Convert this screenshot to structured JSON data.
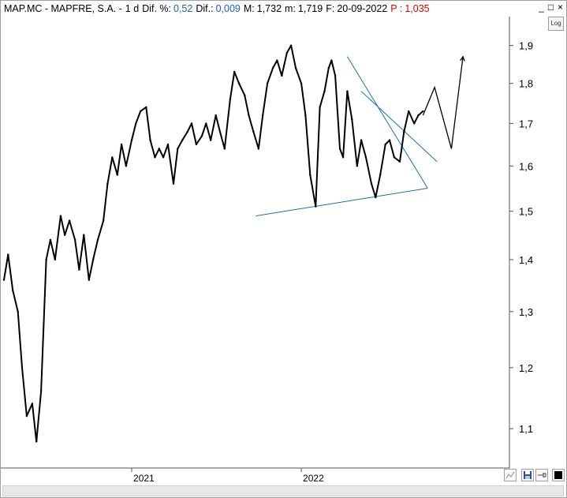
{
  "header": {
    "ticker": "MAP.MC - MAPFRE, S.A. -",
    "period": "1 d",
    "dif_pct_label": "Dif. %:",
    "dif_pct_value": "0,52",
    "dif_label": "Dif.:",
    "dif_value": "0,009",
    "max_label": "M:",
    "max_value": "1,732",
    "min_label": "m:",
    "min_value": "1,719",
    "date_label": "F:",
    "date_value": "20-09-2022",
    "p_label": "P :",
    "p_value": "1,035"
  },
  "controls": {
    "minimize": "_",
    "maximize": "□",
    "close": "×",
    "log": "Log"
  },
  "colors": {
    "price": "#000000",
    "trendline": "#1e6fb0",
    "blue_text": "#1f5fbf",
    "red_text": "#e00000"
  },
  "chart_data": {
    "type": "line",
    "yscale": "log",
    "ylim": [
      1.04,
      1.98
    ],
    "y_ticks": [
      1.1,
      1.2,
      1.3,
      1.4,
      1.5,
      1.6,
      1.7,
      1.8,
      1.9
    ],
    "y_tick_labels": [
      "1,1",
      "1,2",
      "1,3",
      "1,4",
      "1,5",
      "1,6",
      "1,7",
      "1,8",
      "1,9"
    ],
    "x_tick_labels": [
      "2021",
      "2022"
    ],
    "grid": false,
    "x_range": [
      "2020-04-01",
      "2023-03-25"
    ],
    "x_ticks": [
      "2021-01-01",
      "2022-01-01"
    ],
    "series": [
      {
        "x": [
          "2020-04-01",
          "2020-04-10",
          "2020-04-20",
          "2020-05-01",
          "2020-05-10",
          "2020-05-20",
          "2020-06-01",
          "2020-06-10",
          "2020-06-20",
          "2020-07-01",
          "2020-07-10",
          "2020-07-20",
          "2020-08-01",
          "2020-08-10",
          "2020-08-20",
          "2020-09-01",
          "2020-09-10",
          "2020-09-20",
          "2020-10-01",
          "2020-10-10",
          "2020-10-20",
          "2020-11-01",
          "2020-11-10",
          "2020-11-20",
          "2020-12-01",
          "2020-12-10",
          "2020-12-20",
          "2021-01-01",
          "2021-01-10",
          "2021-01-20",
          "2021-02-01",
          "2021-02-10",
          "2021-02-20",
          "2021-03-01",
          "2021-03-10",
          "2021-03-20",
          "2021-04-01",
          "2021-04-10",
          "2021-04-20",
          "2021-05-01",
          "2021-05-10",
          "2021-05-20",
          "2021-06-01",
          "2021-06-10",
          "2021-06-20",
          "2021-07-01",
          "2021-07-10",
          "2021-07-20",
          "2021-08-01",
          "2021-08-10",
          "2021-08-20",
          "2021-09-01",
          "2021-09-10",
          "2021-09-20",
          "2021-10-01",
          "2021-10-10",
          "2021-10-20",
          "2021-11-01",
          "2021-11-10",
          "2021-11-20",
          "2021-12-01",
          "2021-12-10",
          "2021-12-20",
          "2022-01-01",
          "2022-01-10",
          "2022-01-20",
          "2022-02-01",
          "2022-02-10",
          "2022-02-20",
          "2022-03-01",
          "2022-03-07",
          "2022-03-15",
          "2022-03-25",
          "2022-04-01",
          "2022-04-10",
          "2022-04-20",
          "2022-05-01",
          "2022-05-10",
          "2022-05-20",
          "2022-06-01",
          "2022-06-10",
          "2022-06-20",
          "2022-07-01",
          "2022-07-10",
          "2022-07-20",
          "2022-08-01",
          "2022-08-10",
          "2022-08-20",
          "2022-09-01",
          "2022-09-10",
          "2022-09-20"
        ],
        "values": [
          1.36,
          1.41,
          1.34,
          1.3,
          1.2,
          1.12,
          1.14,
          1.08,
          1.16,
          1.4,
          1.44,
          1.4,
          1.49,
          1.45,
          1.48,
          1.44,
          1.38,
          1.45,
          1.36,
          1.4,
          1.44,
          1.48,
          1.56,
          1.62,
          1.58,
          1.65,
          1.6,
          1.66,
          1.7,
          1.73,
          1.74,
          1.66,
          1.62,
          1.64,
          1.62,
          1.65,
          1.56,
          1.64,
          1.66,
          1.68,
          1.7,
          1.65,
          1.67,
          1.7,
          1.66,
          1.72,
          1.68,
          1.64,
          1.76,
          1.83,
          1.8,
          1.77,
          1.72,
          1.68,
          1.64,
          1.72,
          1.8,
          1.84,
          1.86,
          1.82,
          1.88,
          1.9,
          1.84,
          1.8,
          1.72,
          1.58,
          1.51,
          1.74,
          1.78,
          1.84,
          1.86,
          1.82,
          1.64,
          1.62,
          1.78,
          1.71,
          1.6,
          1.66,
          1.62,
          1.56,
          1.53,
          1.58,
          1.65,
          1.66,
          1.62,
          1.61,
          1.68,
          1.73,
          1.7,
          1.72,
          1.73
        ]
      }
    ],
    "trendlines": [
      {
        "x": [
          "2021-09-25",
          "2022-09-30"
        ],
        "values": [
          1.49,
          1.55
        ]
      },
      {
        "x": [
          "2022-04-10",
          "2022-09-30"
        ],
        "values": [
          1.87,
          1.55
        ]
      },
      {
        "x": [
          "2022-05-10",
          "2022-10-20"
        ],
        "values": [
          1.78,
          1.61
        ]
      }
    ],
    "projection": {
      "x": [
        "2022-09-20",
        "2022-10-15",
        "2022-11-20",
        "2022-12-15"
      ],
      "values": [
        1.72,
        1.79,
        1.64,
        1.87
      ]
    }
  }
}
